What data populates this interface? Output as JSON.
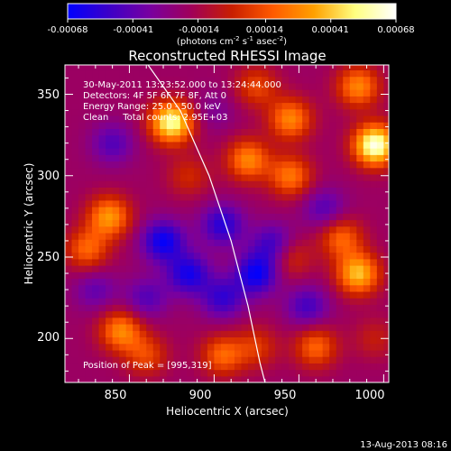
{
  "chart_data": {
    "type": "heatmap",
    "title": "Reconstructed RHESSI Image",
    "xlabel": "Heliocentric X (arcsec)",
    "ylabel": "Heliocentric Y (arcsec)",
    "xlim": [
      812,
      1003
    ],
    "ylim": [
      173,
      368
    ],
    "x_ticks": [
      "850",
      "900",
      "950",
      "1000"
    ],
    "x_tick_values": [
      850,
      900,
      950,
      1000
    ],
    "y_ticks": [
      "200",
      "250",
      "300",
      "350"
    ],
    "y_tick_values": [
      200,
      250,
      300,
      350
    ],
    "colorbar": {
      "range": [
        -0.00068,
        0.00068
      ],
      "tick_labels": [
        "-0.00068",
        "-0.00041",
        "-0.00014",
        "0.00014",
        "0.00041",
        "0.00068"
      ],
      "tick_values": [
        -0.00068,
        -0.00041,
        -0.00014,
        0.00014,
        0.00041,
        0.00068
      ],
      "unit_label_parts": {
        "a": "(photons cm",
        "b": "-2",
        "c": " s",
        "d": "-1",
        "e": " asec",
        "f": "-2",
        "g": ")"
      },
      "colors": [
        "#0000ff",
        "#3c00c8",
        "#7800a0",
        "#a0005a",
        "#c81e00",
        "#ff5a00",
        "#ffa000",
        "#ffff80",
        "#ffffff"
      ]
    },
    "annotations": {
      "time_range": "30-May-2011 13:23:52.000 to 13:24:44.000",
      "detectors": "Detectors: 4F 5F 6F 7F 8F, Att 0",
      "energy": "Energy Range: 25.0 - 50.0 keV",
      "clean": "Clean     Total counts: 2.95E+03",
      "peak": "Position of Peak = [995,319]"
    },
    "limb_curve": [
      [
        861,
        368
      ],
      [
        880,
        340
      ],
      [
        897,
        300
      ],
      [
        910,
        260
      ],
      [
        920,
        220
      ],
      [
        927,
        185
      ],
      [
        930,
        173
      ]
    ],
    "blobs": [
      {
        "x": 995,
        "y": 319,
        "v": 1.0
      },
      {
        "x": 875,
        "y": 333,
        "v": 0.9
      },
      {
        "x": 985,
        "y": 355,
        "v": 0.55
      },
      {
        "x": 945,
        "y": 335,
        "v": 0.55
      },
      {
        "x": 925,
        "y": 355,
        "v": 0.35
      },
      {
        "x": 920,
        "y": 310,
        "v": 0.55
      },
      {
        "x": 945,
        "y": 300,
        "v": 0.5
      },
      {
        "x": 985,
        "y": 240,
        "v": 0.7
      },
      {
        "x": 975,
        "y": 262,
        "v": 0.45
      },
      {
        "x": 838,
        "y": 275,
        "v": 0.6
      },
      {
        "x": 825,
        "y": 255,
        "v": 0.45
      },
      {
        "x": 845,
        "y": 205,
        "v": 0.55
      },
      {
        "x": 860,
        "y": 190,
        "v": 0.35
      },
      {
        "x": 905,
        "y": 190,
        "v": 0.45
      },
      {
        "x": 925,
        "y": 195,
        "v": 0.3
      },
      {
        "x": 960,
        "y": 195,
        "v": 0.45
      },
      {
        "x": 945,
        "y": 250,
        "v": 0.3
      },
      {
        "x": 995,
        "y": 200,
        "v": 0.2
      },
      {
        "x": 885,
        "y": 300,
        "v": 0.25
      },
      {
        "x": 870,
        "y": 260,
        "v": -0.55
      },
      {
        "x": 885,
        "y": 240,
        "v": -0.5
      },
      {
        "x": 905,
        "y": 270,
        "v": -0.45
      },
      {
        "x": 925,
        "y": 240,
        "v": -0.55
      },
      {
        "x": 935,
        "y": 258,
        "v": -0.4
      },
      {
        "x": 905,
        "y": 225,
        "v": -0.4
      },
      {
        "x": 955,
        "y": 220,
        "v": -0.35
      },
      {
        "x": 965,
        "y": 280,
        "v": -0.3
      },
      {
        "x": 840,
        "y": 320,
        "v": -0.3
      },
      {
        "x": 830,
        "y": 230,
        "v": -0.25
      },
      {
        "x": 860,
        "y": 225,
        "v": -0.3
      },
      {
        "x": 900,
        "y": 340,
        "v": -0.15
      }
    ]
  },
  "footer": {
    "timestamp": "13-Aug-2013 08:16"
  }
}
